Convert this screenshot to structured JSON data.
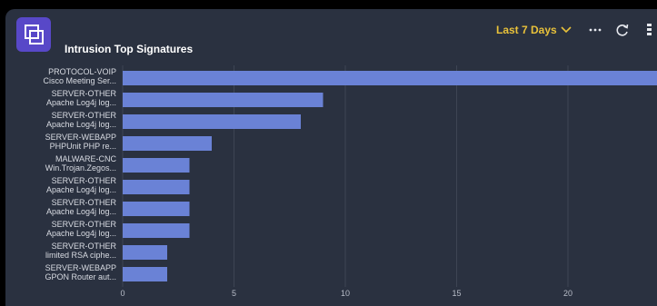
{
  "widget": {
    "title": "Intrusion Top Signatures",
    "range_label": "Last 7 Days",
    "icons": {
      "app": "stacked-squares-icon",
      "range": "chevron-down-icon",
      "more": "more-icon",
      "refresh": "refresh-icon",
      "menu": "vertical-menu-icon"
    }
  },
  "colors": {
    "panel": "#2a3140",
    "bar": "#6a82d6",
    "accent": "#e8c13a",
    "grid": "#3d4554",
    "text": "#d8dbe2"
  },
  "chart_data": {
    "type": "bar",
    "orientation": "horizontal",
    "categories": [
      [
        "PROTOCOL-VOIP",
        "Cisco Meeting Ser..."
      ],
      [
        "SERVER-OTHER",
        "Apache Log4j log..."
      ],
      [
        "SERVER-OTHER",
        "Apache Log4j log..."
      ],
      [
        "SERVER-WEBAPP",
        "PHPUnit PHP re..."
      ],
      [
        "MALWARE-CNC",
        "Win.Trojan.Zegos..."
      ],
      [
        "SERVER-OTHER",
        "Apache Log4j log..."
      ],
      [
        "SERVER-OTHER",
        "Apache Log4j log..."
      ],
      [
        "SERVER-OTHER",
        "Apache Log4j log..."
      ],
      [
        "SERVER-OTHER",
        "limited RSA ciphe..."
      ],
      [
        "SERVER-WEBAPP",
        "GPON Router aut..."
      ]
    ],
    "values": [
      24,
      9,
      8,
      4,
      3,
      3,
      3,
      3,
      2,
      2
    ],
    "xticks": [
      0,
      5,
      10,
      15,
      20
    ],
    "xlim": [
      0,
      24
    ],
    "grid": true
  }
}
